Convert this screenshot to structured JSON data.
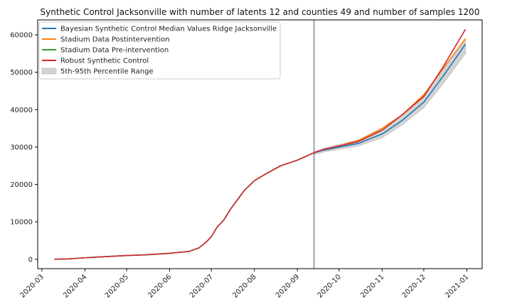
{
  "chart_data": {
    "type": "line",
    "title": "Synthetic Control Jacksonville with number of latents 12 and counties 49 and number of samples 1200",
    "xlabel": "",
    "ylabel": "",
    "xlim": [
      "2020-02-27",
      "2021-01-12"
    ],
    "ylim": [
      -2500,
      64000
    ],
    "intervention_date": "2020-09-13",
    "grid": false,
    "legend_position": "upper-left",
    "x_ticks": [
      "2020-03",
      "2020-04",
      "2020-05",
      "2020-06",
      "2020-07",
      "2020-08",
      "2020-09",
      "2020-10",
      "2020-11",
      "2020-12",
      "2021-01"
    ],
    "y_ticks": [
      0,
      10000,
      20000,
      30000,
      40000,
      50000,
      60000
    ],
    "legend": [
      {
        "label": "Bayesian Synthetic Control Median Values Ridge Jacksonville",
        "color": "#1f77b4",
        "kind": "line"
      },
      {
        "label": "Stadium Data Postintervention",
        "color": "#ff7f0e",
        "kind": "line"
      },
      {
        "label": "Stadium Data Pre-intervention",
        "color": "#2ca02c",
        "kind": "line"
      },
      {
        "label": "Robust Synthetic Control",
        "color": "#d62728",
        "kind": "line"
      },
      {
        "label": "5th-95th Percentile Range",
        "color": "#d3d3d3",
        "kind": "patch"
      }
    ],
    "series": [
      {
        "name": "Stadium Data Pre-intervention",
        "color": "#2ca02c",
        "points": [
          [
            "2020-03-10",
            0
          ],
          [
            "2020-03-20",
            100
          ],
          [
            "2020-04-01",
            400
          ],
          [
            "2020-04-15",
            700
          ],
          [
            "2020-05-01",
            1000
          ],
          [
            "2020-05-15",
            1200
          ],
          [
            "2020-06-01",
            1600
          ],
          [
            "2020-06-15",
            2100
          ],
          [
            "2020-06-22",
            3000
          ],
          [
            "2020-06-27",
            4500
          ],
          [
            "2020-07-01",
            6000
          ],
          [
            "2020-07-05",
            8500
          ],
          [
            "2020-07-10",
            10500
          ],
          [
            "2020-07-15",
            13500
          ],
          [
            "2020-07-20",
            16000
          ],
          [
            "2020-07-25",
            18500
          ],
          [
            "2020-08-01",
            21000
          ],
          [
            "2020-08-10",
            23000
          ],
          [
            "2020-08-20",
            25000
          ],
          [
            "2020-09-01",
            26500
          ],
          [
            "2020-09-13",
            28500
          ]
        ]
      },
      {
        "name": "Stadium Data Postintervention",
        "color": "#ff7f0e",
        "points": [
          [
            "2020-09-13",
            28500
          ],
          [
            "2020-09-20",
            29300
          ],
          [
            "2020-10-01",
            30300
          ],
          [
            "2020-10-15",
            31800
          ],
          [
            "2020-11-01",
            35000
          ],
          [
            "2020-11-15",
            38500
          ],
          [
            "2020-12-01",
            44000
          ],
          [
            "2020-12-15",
            51000
          ],
          [
            "2020-12-31",
            59000
          ]
        ]
      },
      {
        "name": "Bayesian Synthetic Control Median Values Ridge Jacksonville",
        "color": "#1f77b4",
        "points": [
          [
            "2020-03-10",
            0
          ],
          [
            "2020-03-20",
            100
          ],
          [
            "2020-04-01",
            400
          ],
          [
            "2020-04-15",
            700
          ],
          [
            "2020-05-01",
            1000
          ],
          [
            "2020-05-15",
            1200
          ],
          [
            "2020-06-01",
            1600
          ],
          [
            "2020-06-15",
            2100
          ],
          [
            "2020-06-22",
            3000
          ],
          [
            "2020-06-27",
            4500
          ],
          [
            "2020-07-01",
            6000
          ],
          [
            "2020-07-05",
            8500
          ],
          [
            "2020-07-10",
            10500
          ],
          [
            "2020-07-15",
            13500
          ],
          [
            "2020-07-20",
            16000
          ],
          [
            "2020-07-25",
            18500
          ],
          [
            "2020-08-01",
            21000
          ],
          [
            "2020-08-10",
            23000
          ],
          [
            "2020-08-20",
            25000
          ],
          [
            "2020-09-01",
            26500
          ],
          [
            "2020-09-13",
            28500
          ],
          [
            "2020-09-20",
            29200
          ],
          [
            "2020-10-01",
            30000
          ],
          [
            "2020-10-15",
            31000
          ],
          [
            "2020-11-01",
            33500
          ],
          [
            "2020-11-15",
            37000
          ],
          [
            "2020-12-01",
            42000
          ],
          [
            "2020-12-15",
            49000
          ],
          [
            "2020-12-31",
            57500
          ]
        ]
      },
      {
        "name": "Robust Synthetic Control",
        "color": "#d62728",
        "points": [
          [
            "2020-03-10",
            0
          ],
          [
            "2020-03-20",
            100
          ],
          [
            "2020-04-01",
            400
          ],
          [
            "2020-04-15",
            700
          ],
          [
            "2020-05-01",
            1000
          ],
          [
            "2020-05-15",
            1200
          ],
          [
            "2020-06-01",
            1600
          ],
          [
            "2020-06-15",
            2100
          ],
          [
            "2020-06-22",
            3000
          ],
          [
            "2020-06-27",
            4500
          ],
          [
            "2020-07-01",
            6000
          ],
          [
            "2020-07-05",
            8500
          ],
          [
            "2020-07-10",
            10500
          ],
          [
            "2020-07-15",
            13500
          ],
          [
            "2020-07-20",
            16000
          ],
          [
            "2020-07-25",
            18500
          ],
          [
            "2020-08-01",
            21000
          ],
          [
            "2020-08-10",
            23000
          ],
          [
            "2020-08-20",
            25000
          ],
          [
            "2020-09-01",
            26500
          ],
          [
            "2020-09-13",
            28500
          ],
          [
            "2020-09-20",
            29400
          ],
          [
            "2020-10-01",
            30300
          ],
          [
            "2020-10-15",
            31500
          ],
          [
            "2020-11-01",
            34500
          ],
          [
            "2020-11-15",
            38500
          ],
          [
            "2020-12-01",
            43500
          ],
          [
            "2020-12-15",
            51500
          ],
          [
            "2020-12-31",
            61500
          ]
        ]
      }
    ],
    "band": {
      "name": "5th-95th Percentile Range",
      "color": "#d3d3d3",
      "points": [
        [
          "2020-09-13",
          28000,
          28700
        ],
        [
          "2020-09-20",
          28700,
          29700
        ],
        [
          "2020-10-01",
          29400,
          30700
        ],
        [
          "2020-10-15",
          30300,
          31900
        ],
        [
          "2020-11-01",
          32500,
          34700
        ],
        [
          "2020-11-15",
          35800,
          38400
        ],
        [
          "2020-12-01",
          40500,
          43800
        ],
        [
          "2020-12-15",
          47000,
          51200
        ],
        [
          "2020-12-31",
          55000,
          59000
        ]
      ]
    }
  }
}
